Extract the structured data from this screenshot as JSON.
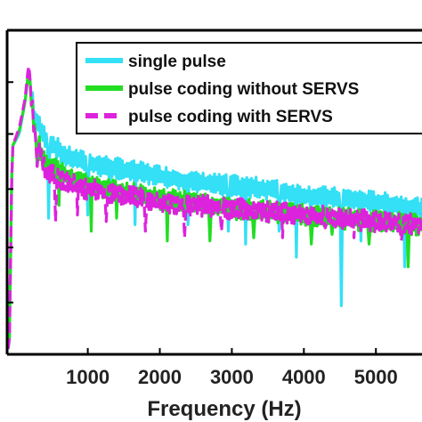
{
  "chart_data": {
    "type": "line",
    "xlabel": "Frequency (Hz)",
    "ylabel": "",
    "title": "",
    "xlim": [
      -120,
      5640
    ],
    "ylim": [
      0,
      100
    ],
    "x_ticks": [
      1000,
      2000,
      3000,
      4000,
      5000
    ],
    "x_tick_labels": [
      "1000",
      "2000",
      "3000",
      "4000",
      "5000"
    ],
    "y_ticks": [
      16,
      33,
      51,
      68,
      84
    ],
    "legend_position": "top-right",
    "grid": false,
    "colors": {
      "single_pulse": "#33e0f5",
      "coding_without": "#22dd22",
      "coding_with": "#dd22dd",
      "axis": "#000000"
    },
    "series": [
      {
        "name": "single pulse",
        "key": "single_pulse",
        "style": "solid",
        "baseline": [
          [
            -120,
            2
          ],
          [
            -90,
            2
          ],
          [
            -50,
            64
          ],
          [
            50,
            68
          ],
          [
            130,
            78
          ],
          [
            180,
            88
          ],
          [
            260,
            73
          ],
          [
            400,
            67
          ],
          [
            700,
            61
          ],
          [
            1000,
            59
          ],
          [
            1500,
            57
          ],
          [
            2000,
            55
          ],
          [
            2500,
            53
          ],
          [
            3000,
            52
          ],
          [
            3500,
            51
          ],
          [
            4000,
            49
          ],
          [
            4500,
            48
          ],
          [
            5000,
            47
          ],
          [
            5640,
            45
          ]
        ],
        "dips": [
          [
            450,
            42
          ],
          [
            1000,
            43
          ],
          [
            1300,
            47
          ],
          [
            1650,
            40
          ],
          [
            2400,
            40
          ],
          [
            2950,
            38
          ],
          [
            3200,
            34
          ],
          [
            3650,
            38
          ],
          [
            3900,
            30
          ],
          [
            4520,
            15
          ],
          [
            4800,
            35
          ],
          [
            5400,
            27
          ]
        ]
      },
      {
        "name": "pulse coding without SERVS",
        "key": "coding_without",
        "style": "solid",
        "baseline": [
          [
            -120,
            2
          ],
          [
            -90,
            2
          ],
          [
            -50,
            64
          ],
          [
            50,
            69
          ],
          [
            130,
            78
          ],
          [
            180,
            88
          ],
          [
            260,
            69
          ],
          [
            400,
            59
          ],
          [
            700,
            55
          ],
          [
            1000,
            52
          ],
          [
            1500,
            50
          ],
          [
            2000,
            48
          ],
          [
            2500,
            47
          ],
          [
            3000,
            45
          ],
          [
            3500,
            44
          ],
          [
            4000,
            43
          ],
          [
            4500,
            42
          ],
          [
            5000,
            41
          ],
          [
            5640,
            40
          ]
        ],
        "dips": [
          [
            300,
            58
          ],
          [
            600,
            46
          ],
          [
            1050,
            38
          ],
          [
            1400,
            42
          ],
          [
            2100,
            35
          ],
          [
            2700,
            35
          ],
          [
            3300,
            36
          ],
          [
            4100,
            34
          ],
          [
            4400,
            37
          ],
          [
            4900,
            34
          ],
          [
            5450,
            27
          ]
        ]
      },
      {
        "name": "pulse coding with SERVS",
        "key": "coding_with",
        "style": "dashed",
        "baseline": [
          [
            -120,
            2
          ],
          [
            -90,
            2
          ],
          [
            -50,
            64
          ],
          [
            50,
            70
          ],
          [
            130,
            79
          ],
          [
            180,
            90
          ],
          [
            260,
            68
          ],
          [
            400,
            57
          ],
          [
            700,
            53
          ],
          [
            1000,
            51
          ],
          [
            1500,
            49
          ],
          [
            2000,
            47
          ],
          [
            2500,
            46
          ],
          [
            3000,
            45
          ],
          [
            3500,
            44
          ],
          [
            4000,
            43
          ],
          [
            4500,
            42
          ],
          [
            5000,
            41
          ],
          [
            5640,
            40
          ]
        ],
        "dips": [
          [
            300,
            58
          ],
          [
            550,
            41
          ],
          [
            850,
            43
          ],
          [
            1250,
            41
          ],
          [
            1800,
            38
          ],
          [
            2350,
            36
          ],
          [
            2850,
            38
          ],
          [
            3700,
            36
          ],
          [
            4300,
            39
          ],
          [
            4700,
            36
          ],
          [
            5350,
            35
          ]
        ]
      }
    ]
  }
}
